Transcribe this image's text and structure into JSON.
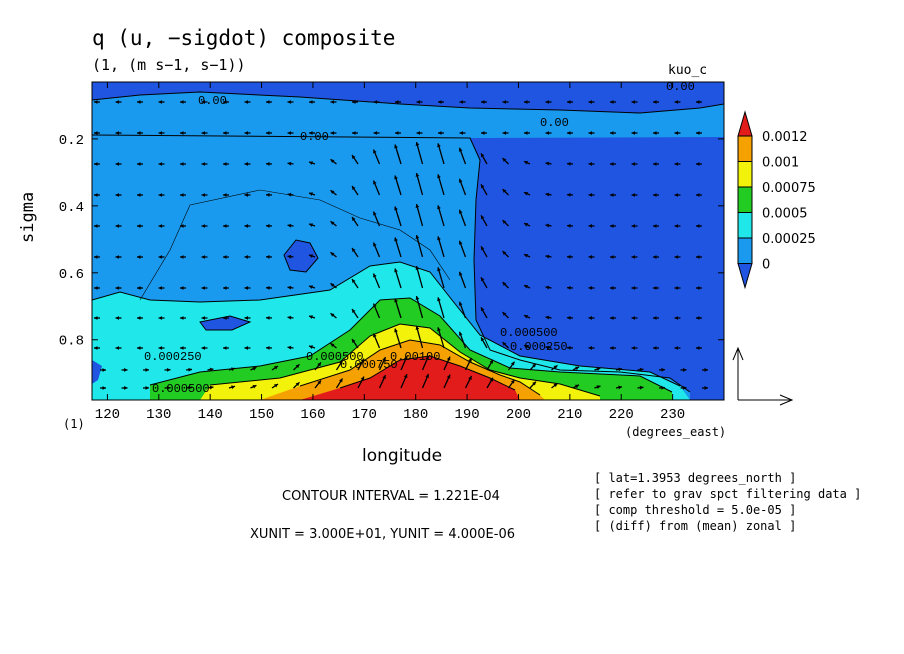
{
  "chart_data": {
    "type": "contour",
    "title": "q (u, −sigdot) composite",
    "subtitle": "(1, (m s−1, s−1))",
    "panel_label": "kuo_c",
    "xlabel": "longitude",
    "ylabel": "sigma",
    "x_units_label": "(degrees_east)",
    "y_units_label": "(1)",
    "xlim": [
      117,
      240
    ],
    "ylim": [
      0.98,
      0.03
    ],
    "x_ticks": [
      120,
      130,
      140,
      150,
      160,
      170,
      180,
      190,
      200,
      210,
      220,
      230
    ],
    "y_ticks": [
      0.2,
      0.4,
      0.6,
      0.8
    ],
    "colorbar": {
      "levels": [
        "0.0012",
        "0.001",
        "0.00075",
        "0.0005",
        "0.00025",
        "0"
      ],
      "colors": [
        "#e21b1b",
        "#f5a100",
        "#f2f20a",
        "#22cc22",
        "#20e8ea",
        "#1a9aee",
        "#1f55e0"
      ]
    },
    "contour_labels": [
      "0.00",
      "0.00",
      "0.00",
      "0.00",
      "0.000250",
      "0.000500",
      "0.000750",
      "0.00100",
      "0.000500",
      "0.000250",
      "0.000500"
    ],
    "contour_interval": "CONTOUR INTERVAL = 1.221E-04",
    "unit_scale": "XUNIT = 3.000E+01, YUNIT = 4.000E-06",
    "info": [
      "[ lat=1.3953 degrees_north ]",
      "[ refer to grav spct filtering data ]",
      "[ comp threshold = 5.0e-05 ]",
      "[ (diff) from (mean) zonal ]"
    ],
    "field_peak": {
      "lon": 185,
      "sigma": 0.93,
      "value": 0.0013
    }
  }
}
